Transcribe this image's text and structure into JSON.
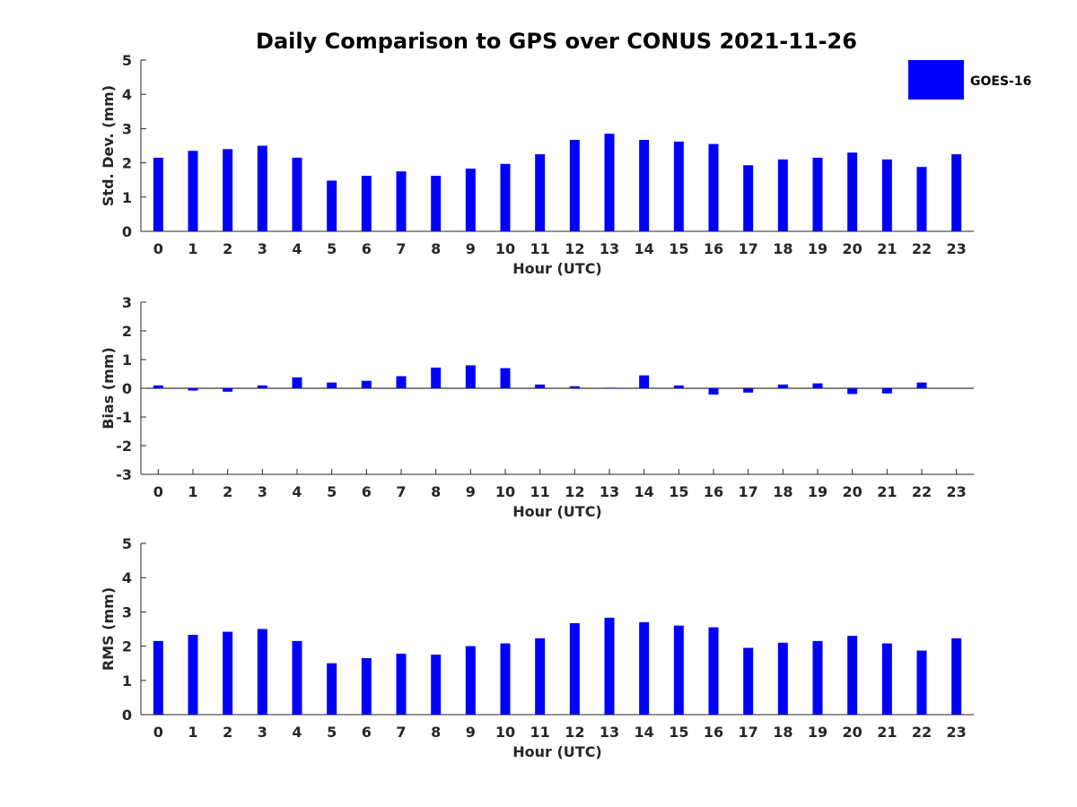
{
  "figure": {
    "title": "Daily Comparison to GPS over CONUS 2021-11-26",
    "legend": {
      "label": "GOES-16",
      "color": "#0000ff",
      "placement": "top-right"
    }
  },
  "chart_data": [
    {
      "type": "bar",
      "id": "stddev",
      "title": "Daily Comparison to GPS over CONUS 2021-11-26",
      "xlabel": "Hour (UTC)",
      "ylabel": "Std. Dev. (mm)",
      "ylim": [
        0,
        5
      ],
      "yticks": [
        "0",
        "1",
        "2",
        "3",
        "4",
        "5"
      ],
      "categories": [
        "0",
        "1",
        "2",
        "3",
        "4",
        "5",
        "6",
        "7",
        "8",
        "9",
        "10",
        "11",
        "12",
        "13",
        "14",
        "15",
        "16",
        "17",
        "18",
        "19",
        "20",
        "21",
        "22",
        "23"
      ],
      "series": [
        {
          "name": "GOES-16",
          "color": "#0000ff",
          "values": [
            2.15,
            2.35,
            2.4,
            2.5,
            2.15,
            1.48,
            1.62,
            1.75,
            1.62,
            1.83,
            1.97,
            2.25,
            2.67,
            2.85,
            2.67,
            2.62,
            2.55,
            1.93,
            2.1,
            2.15,
            2.3,
            2.1,
            1.88,
            2.25
          ]
        }
      ]
    },
    {
      "type": "bar",
      "id": "bias",
      "xlabel": "Hour (UTC)",
      "ylabel": "Bias (mm)",
      "ylim": [
        -3,
        3
      ],
      "yticks": [
        "-3",
        "-2",
        "-1",
        "0",
        "1",
        "2",
        "3"
      ],
      "categories": [
        "0",
        "1",
        "2",
        "3",
        "4",
        "5",
        "6",
        "7",
        "8",
        "9",
        "10",
        "11",
        "12",
        "13",
        "14",
        "15",
        "16",
        "17",
        "18",
        "19",
        "20",
        "21",
        "22",
        "23"
      ],
      "series": [
        {
          "name": "GOES-16",
          "color": "#0000ff",
          "values": [
            0.1,
            -0.08,
            -0.12,
            0.1,
            0.38,
            0.2,
            0.26,
            0.42,
            0.72,
            0.8,
            0.7,
            0.13,
            0.07,
            0.02,
            0.45,
            0.1,
            -0.22,
            -0.15,
            0.13,
            0.17,
            -0.2,
            -0.18,
            0.2,
            0.0
          ]
        }
      ]
    },
    {
      "type": "bar",
      "id": "rms",
      "xlabel": "Hour (UTC)",
      "ylabel": "RMS (mm)",
      "ylim": [
        0,
        5
      ],
      "yticks": [
        "0",
        "1",
        "2",
        "3",
        "4",
        "5"
      ],
      "categories": [
        "0",
        "1",
        "2",
        "3",
        "4",
        "5",
        "6",
        "7",
        "8",
        "9",
        "10",
        "11",
        "12",
        "13",
        "14",
        "15",
        "16",
        "17",
        "18",
        "19",
        "20",
        "21",
        "22",
        "23"
      ],
      "series": [
        {
          "name": "GOES-16",
          "color": "#0000ff",
          "values": [
            2.15,
            2.33,
            2.42,
            2.5,
            2.15,
            1.5,
            1.65,
            1.78,
            1.75,
            2.0,
            2.08,
            2.23,
            2.67,
            2.83,
            2.7,
            2.6,
            2.55,
            1.95,
            2.1,
            2.15,
            2.3,
            2.08,
            1.87,
            2.23
          ]
        }
      ]
    }
  ]
}
